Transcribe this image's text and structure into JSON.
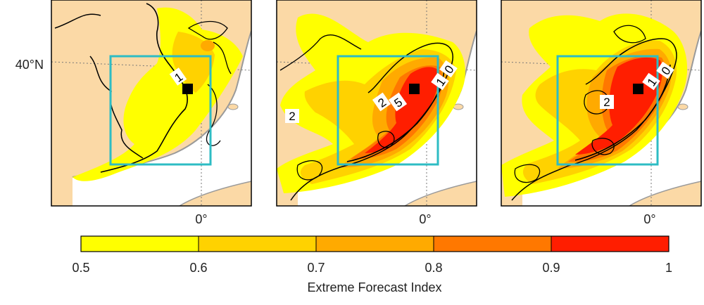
{
  "figure": {
    "latitude_label": "40°N",
    "longitude_label": "0°",
    "panels": [
      {
        "id": "a",
        "contour_labels": [
          "1"
        ]
      },
      {
        "id": "b",
        "contour_labels": [
          "2",
          "2",
          "5",
          "1",
          "0"
        ]
      },
      {
        "id": "c",
        "contour_labels": [
          "2",
          "1",
          "0"
        ]
      }
    ]
  },
  "colorbar": {
    "title": "Extreme Forecast Index",
    "ticks": [
      "0.5",
      "0.6",
      "0.7",
      "0.8",
      "0.9",
      "1"
    ],
    "colors": [
      "#ffff00",
      "#ffd200",
      "#ffaa00",
      "#ff7800",
      "#ff1e00"
    ]
  },
  "colors": {
    "land": "#fbd9a6",
    "sea": "#ffffff",
    "box": "#2ebcc4",
    "coast": "#9a9a9a",
    "point": "#000000"
  }
}
